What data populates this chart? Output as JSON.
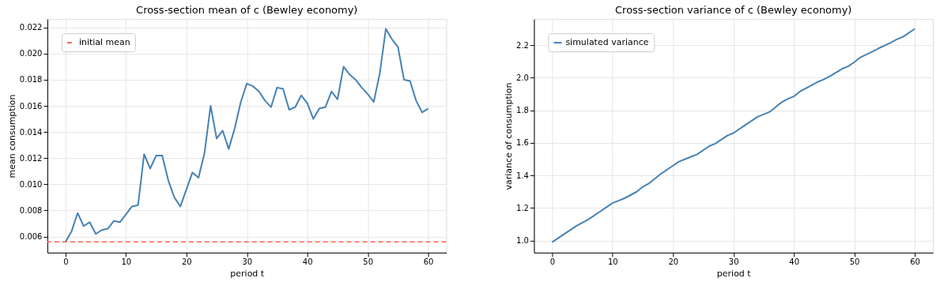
{
  "chart_data": [
    {
      "type": "line",
      "title": "Cross-section mean of c (Bewley economy)",
      "xlabel": "period t",
      "ylabel": "mean consumption",
      "x": [
        0,
        1,
        2,
        3,
        4,
        5,
        6,
        7,
        8,
        9,
        10,
        11,
        12,
        13,
        14,
        15,
        16,
        17,
        18,
        19,
        20,
        21,
        22,
        23,
        24,
        25,
        26,
        27,
        28,
        29,
        30,
        31,
        32,
        33,
        34,
        35,
        36,
        37,
        38,
        39,
        40,
        41,
        42,
        43,
        44,
        45,
        46,
        47,
        48,
        49,
        50,
        51,
        52,
        53,
        54,
        55,
        56,
        57,
        58,
        59,
        60
      ],
      "series": [
        {
          "color": "#4682b4",
          "values": [
            0.0056,
            0.0064,
            0.0078,
            0.0068,
            0.0071,
            0.0062,
            0.0065,
            0.0066,
            0.0072,
            0.0071,
            0.0077,
            0.0083,
            0.0084,
            0.0123,
            0.0112,
            0.0122,
            0.0122,
            0.0103,
            0.009,
            0.0083,
            0.0096,
            0.0109,
            0.0105,
            0.0124,
            0.016,
            0.0135,
            0.0141,
            0.0127,
            0.0143,
            0.0163,
            0.0177,
            0.0175,
            0.0171,
            0.0164,
            0.0159,
            0.0174,
            0.0173,
            0.0157,
            0.0159,
            0.0168,
            0.0162,
            0.015,
            0.0158,
            0.0159,
            0.0171,
            0.0165,
            0.019,
            0.0184,
            0.018,
            0.0174,
            0.0169,
            0.0163,
            0.0185,
            0.0219,
            0.0211,
            0.0205,
            0.018,
            0.0179,
            0.0164,
            0.0155,
            0.0158
          ]
        }
      ],
      "ref_lines": [
        {
          "axis": "y",
          "value": 0.0056,
          "label": "initial mean",
          "color": "#ff6347",
          "line_style": "dashed"
        }
      ],
      "xlim": [
        -3,
        63
      ],
      "xticks": [
        0,
        10,
        20,
        30,
        40,
        50,
        60
      ],
      "ylim": [
        0.00477,
        0.02264
      ],
      "yticks": [
        0.006,
        0.008,
        {
          "value": 0.01,
          "label": "0.010"
        },
        0.012,
        0.014,
        0.016,
        0.018,
        {
          "value": 0.02,
          "label": "0.020"
        },
        0.022
      ],
      "grid": true,
      "legend": "top left",
      "marker": "none"
    },
    {
      "type": "line",
      "title": "Cross-section variance of c (Bewley economy)",
      "xlabel": "period t",
      "ylabel": "variance of consumption",
      "x": [
        0,
        2,
        4,
        6,
        8,
        10,
        11,
        12,
        14,
        15,
        16,
        18,
        20,
        21,
        22,
        24,
        26,
        27,
        29,
        30,
        32,
        34,
        36,
        38,
        39,
        40,
        41,
        43,
        44,
        45,
        46,
        48,
        49,
        50,
        51,
        53,
        54,
        56,
        57,
        58,
        60
      ],
      "series": [
        {
          "name": "simulated variance",
          "color": "#4682b4",
          "values": [
            0.99,
            1.04,
            1.09,
            1.13,
            1.18,
            1.23,
            1.245,
            1.26,
            1.3,
            1.33,
            1.35,
            1.41,
            1.46,
            1.485,
            1.5,
            1.53,
            1.58,
            1.595,
            1.645,
            1.66,
            1.71,
            1.76,
            1.79,
            1.85,
            1.87,
            1.885,
            1.915,
            1.955,
            1.975,
            1.99,
            2.01,
            2.055,
            2.07,
            2.095,
            2.125,
            2.16,
            2.18,
            2.215,
            2.235,
            2.25,
            2.3
          ]
        }
      ],
      "xlim": [
        -3,
        63
      ],
      "xticks": [
        0,
        10,
        20,
        30,
        40,
        50,
        60
      ],
      "ylim": [
        0.926,
        2.36
      ],
      "yticks": [
        {
          "value": 1,
          "label": "1.0"
        },
        1.2,
        1.4,
        1.6,
        1.8,
        {
          "value": 2,
          "label": "2.0"
        },
        2.2
      ],
      "grid": true,
      "legend": "top left",
      "marker": "none"
    }
  ]
}
